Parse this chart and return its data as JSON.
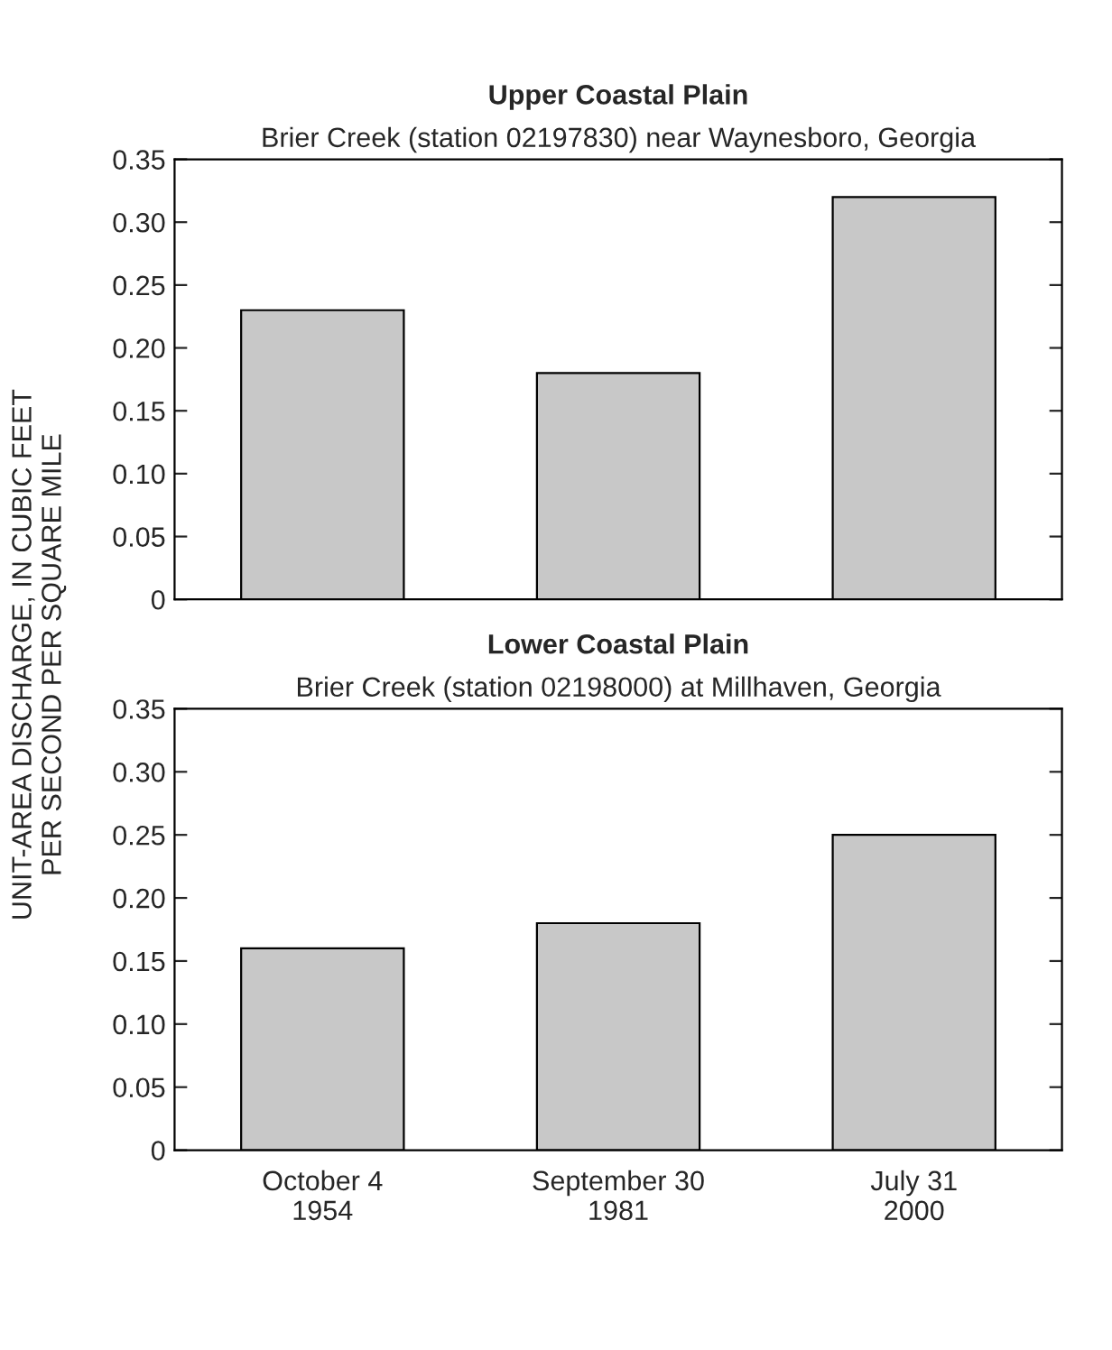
{
  "chart_data": [
    {
      "type": "bar",
      "title": "Upper Coastal Plain",
      "subtitle": "Brier Creek (station 02197830) near Waynesboro, Georgia",
      "ylabel": "UNIT-AREA DISCHARGE, IN CUBIC FEET\nPER SECOND PER SQUARE MILE",
      "categories": [
        null,
        null,
        null
      ],
      "values": [
        0.23,
        0.18,
        0.32
      ],
      "color": "#c8c8c8",
      "ylim": [
        0,
        0.35
      ],
      "yticks": [
        0,
        0.05,
        {
          "value": 0.1,
          "label": "0.10"
        },
        0.15,
        {
          "value": 0.2,
          "label": "0.20"
        },
        0.25,
        {
          "value": 0.3,
          "label": "0.30"
        },
        0.35
      ],
      "tick_labels": "y"
    },
    {
      "type": "bar",
      "title": "Lower Coastal Plain",
      "subtitle": "Brier Creek (station 02198000) at Millhaven, Georgia",
      "categories": [
        "October 4\n1954",
        "September 30\n1981",
        "July 31\n2000"
      ],
      "values": [
        0.16,
        0.18,
        0.25
      ],
      "color": "#c8c8c8",
      "ylim": [
        0,
        0.35
      ],
      "yticks": [
        0,
        0.05,
        {
          "value": 0.1,
          "label": "0.10"
        },
        0.15,
        {
          "value": 0.2,
          "label": "0.20"
        },
        0.25,
        {
          "value": 0.3,
          "label": "0.30"
        },
        0.35
      ]
    }
  ]
}
